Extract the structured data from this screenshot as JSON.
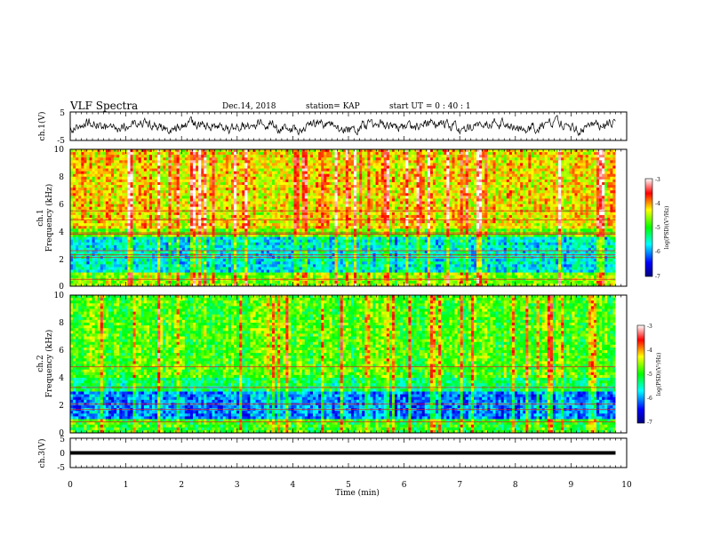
{
  "header": {
    "title": "VLF Spectra",
    "date": "Dec.14, 2018",
    "station": "station= KAP",
    "start": "start  UT  =   0 : 40 : 1"
  },
  "chart_data": [
    {
      "id": "ch1-waveform",
      "type": "line",
      "ylabel": "ch.1(V)",
      "ylim": [
        -5,
        5
      ],
      "xlim": [
        0,
        10
      ],
      "yticks": [
        "5",
        "-5"
      ],
      "description_level": "noisy baseband signal around 0 V with peaks near +3 V"
    },
    {
      "id": "ch1-spectrogram",
      "type": "heatmap",
      "ylabel_1": "ch.1",
      "ylabel_2": "Frequency (kHz)",
      "xlim": [
        0,
        10
      ],
      "ylim": [
        0,
        10
      ],
      "yticks": [
        "0",
        "2",
        "4",
        "6",
        "8",
        "10"
      ],
      "data_end_min": 9.8,
      "colorbar": {
        "label": "log(PSD)(V²/Hz)",
        "range": [
          -7,
          -3
        ],
        "ticks": [
          "-3",
          "-4",
          "-5",
          "-6",
          "-7"
        ]
      },
      "lines_khz": [
        5.5,
        4.85,
        3.9,
        3.8,
        2.6,
        2.3,
        2.1,
        0.5
      ]
    },
    {
      "id": "ch2-spectrogram",
      "type": "heatmap",
      "ylabel_1": "ch.2",
      "ylabel_2": "Frequency (kHz)",
      "xlim": [
        0,
        10
      ],
      "ylim": [
        0,
        10
      ],
      "yticks": [
        "0",
        "2",
        "4",
        "6",
        "8",
        "10"
      ],
      "data_end_min": 9.8,
      "colorbar": {
        "label": "log(PSD)(V²/Hz)",
        "range": [
          -7,
          -3
        ],
        "ticks": [
          "-3",
          "-4",
          "-5",
          "-6",
          "-7"
        ]
      },
      "lines_khz": [
        4.8,
        3.3,
        2.1,
        1.7,
        0.8
      ]
    },
    {
      "id": "ch3-waveform",
      "type": "line",
      "ylabel": "ch.3(V)",
      "ylim": [
        -5,
        5
      ],
      "xlim": [
        0,
        10
      ],
      "yticks": [
        "5",
        "0",
        "-5"
      ],
      "level_v": 0
    }
  ],
  "xaxis": {
    "label": "Time (min)",
    "ticks": [
      "0",
      "1",
      "2",
      "3",
      "4",
      "5",
      "6",
      "7",
      "8",
      "9",
      "10"
    ]
  }
}
